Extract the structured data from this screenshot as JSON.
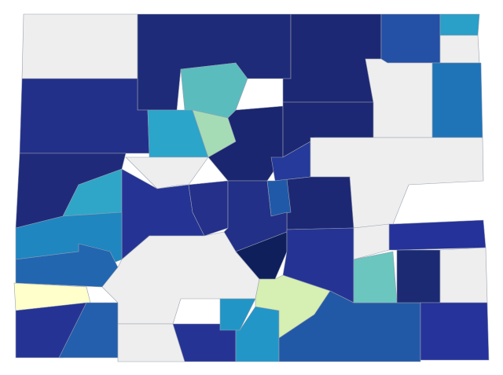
{
  "map": {
    "regions": [
      {
        "color": "#eeeeee"
      },
      {
        "color": "#1e2b78"
      },
      {
        "color": "#5bbcbe"
      },
      {
        "color": "#1d2874"
      },
      {
        "color": "#2450a5"
      },
      {
        "color": "#2a9fc7"
      },
      {
        "color": "#eeeeee"
      },
      {
        "color": "#1f74b8"
      },
      {
        "color": "#eeeeee"
      },
      {
        "color": "#23308a"
      },
      {
        "color": "#2ba5c9"
      },
      {
        "color": "#a6dcb5"
      },
      {
        "color": "#1f2b7a"
      },
      {
        "color": "#eeeeee"
      },
      {
        "color": "#1b2670"
      },
      {
        "color": "#1d2874"
      },
      {
        "color": "#253a9a"
      },
      {
        "color": "#eeeeee"
      },
      {
        "color": "#1d2874"
      },
      {
        "color": "#2059a8"
      },
      {
        "color": "#2fa6c8"
      },
      {
        "color": "#253494"
      },
      {
        "color": "#24308a"
      },
      {
        "color": "#223088"
      },
      {
        "color": "#1f86c0"
      },
      {
        "color": "#2266b0"
      },
      {
        "color": "#ffffcc"
      },
      {
        "color": "#253494"
      },
      {
        "color": "#235fac"
      },
      {
        "color": "#eeeeee"
      },
      {
        "color": "#eeeeee"
      },
      {
        "color": "#253494"
      },
      {
        "color": "#2196c6"
      },
      {
        "color": "#2396c8"
      },
      {
        "color": "#0e1f5c"
      },
      {
        "color": "#d6efb2"
      },
      {
        "color": "#253494"
      },
      {
        "color": "#2259a6"
      },
      {
        "color": "#6ac6bf"
      },
      {
        "color": "#1b2a72"
      },
      {
        "color": "#25329a"
      },
      {
        "color": "#eeeeee"
      },
      {
        "color": "#25339a"
      },
      {
        "color": "#eeeeee"
      }
    ]
  }
}
